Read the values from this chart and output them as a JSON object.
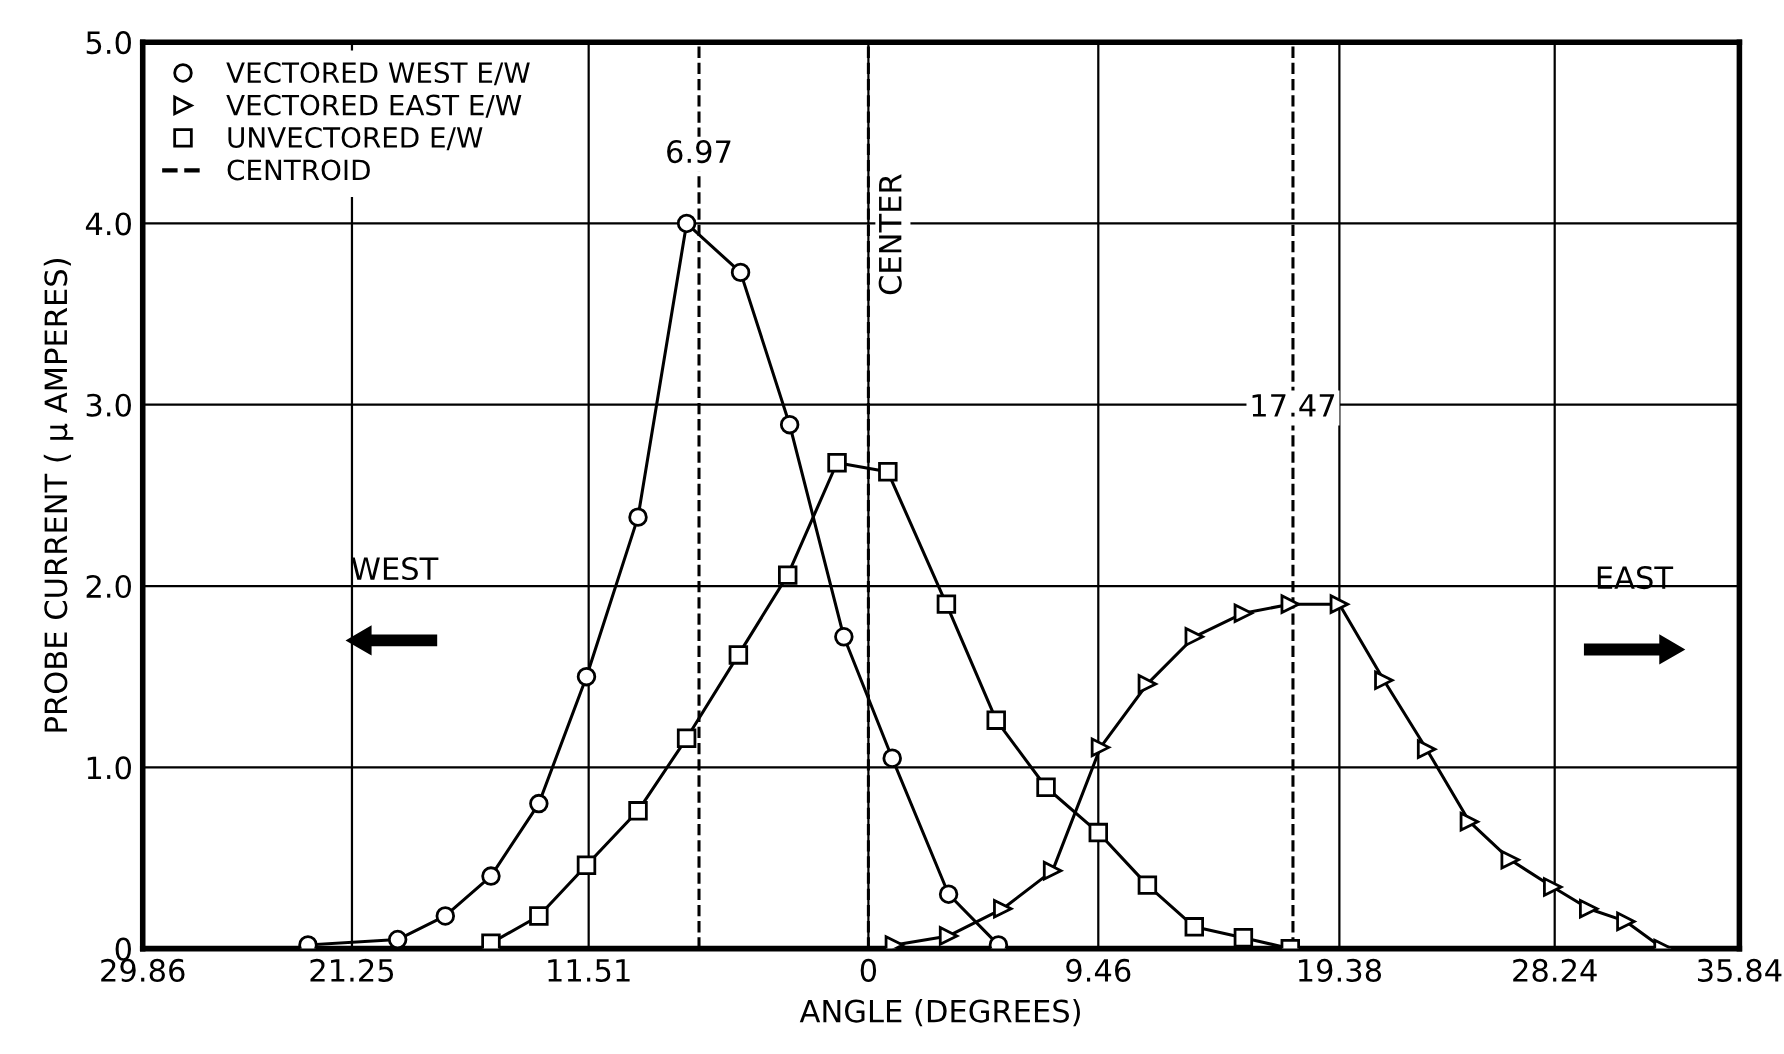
{
  "chart_data": {
    "type": "line",
    "xlabel": "ANGLE (DEGREES)",
    "ylabel": "PROBE CURRENT ( μ AMPERES)",
    "xlim": [
      -29.86,
      35.84
    ],
    "ylim": [
      0,
      5
    ],
    "xticks": [
      {
        "value": -29.86,
        "label": "29.86"
      },
      {
        "value": -21.25,
        "label": "21.25"
      },
      {
        "value": -11.51,
        "label": "11.51"
      },
      0,
      9.46,
      19.38,
      28.24,
      35.84
    ],
    "yticks": [
      0,
      {
        "value": 1,
        "label": "1.0"
      },
      {
        "value": 2,
        "label": "2.0"
      },
      {
        "value": 3,
        "label": "3.0"
      },
      {
        "value": 4,
        "label": "4.0"
      },
      {
        "value": 5,
        "label": "5.0"
      }
    ],
    "grid": true,
    "legend": "top left",
    "line_style": "solid",
    "series": [
      {
        "name": "VECTORED WEST E/W",
        "color": "#000000",
        "marker": "circle",
        "x": [
          -23.06,
          -19.37,
          -17.41,
          -15.53,
          -13.56,
          -11.6,
          -9.48,
          -7.48,
          -5.26,
          -3.24,
          -1.01,
          0.98,
          3.3,
          5.35
        ],
        "values": [
          0.02,
          0.05,
          0.18,
          0.4,
          0.8,
          1.5,
          2.38,
          4.0,
          3.73,
          2.89,
          1.72,
          1.05,
          0.3,
          0.02
        ]
      },
      {
        "name": "VECTORED EAST E/W",
        "color": "#000000",
        "marker": "triangle",
        "x": [
          1.07,
          3.3,
          5.53,
          7.58,
          9.55,
          11.48,
          13.41,
          15.43,
          17.36,
          19.38,
          21.21,
          22.97,
          24.73,
          26.41,
          28.16,
          29.64,
          31.17,
          32.7
        ],
        "values": [
          0.02,
          0.07,
          0.22,
          0.43,
          1.11,
          1.46,
          1.72,
          1.85,
          1.9,
          1.9,
          1.48,
          1.1,
          0.7,
          0.49,
          0.34,
          0.22,
          0.15,
          0.0
        ]
      },
      {
        "name": "UNVECTORED E/W",
        "color": "#000000",
        "marker": "square",
        "x": [
          -15.53,
          -13.56,
          -11.6,
          -9.48,
          -7.48,
          -5.35,
          -3.32,
          -1.29,
          0.8,
          3.21,
          5.26,
          7.31,
          9.46,
          11.48,
          13.41,
          15.43,
          17.36
        ],
        "values": [
          0.03,
          0.18,
          0.46,
          0.76,
          1.16,
          1.62,
          2.06,
          2.68,
          2.63,
          1.9,
          1.26,
          0.89,
          0.64,
          0.35,
          0.12,
          0.06,
          0.0
        ]
      }
    ],
    "ref_lines": [
      {
        "axis": "x",
        "value": -6.97,
        "line_style": "dashed",
        "color": "#000000"
      },
      {
        "axis": "x",
        "value": 0,
        "label": "CENTER",
        "line_style": "dashed",
        "color": "#000000"
      },
      {
        "axis": "x",
        "value": 17.47,
        "line_style": "dashed",
        "color": "#000000"
      }
    ],
    "annotations": [
      "CENTROID",
      "WEST",
      "EAST",
      {
        "text": "6.97",
        "x": -6.97,
        "y": 4.3
      },
      {
        "text": "17.47",
        "x": 17.47,
        "y": 2.9
      }
    ]
  }
}
